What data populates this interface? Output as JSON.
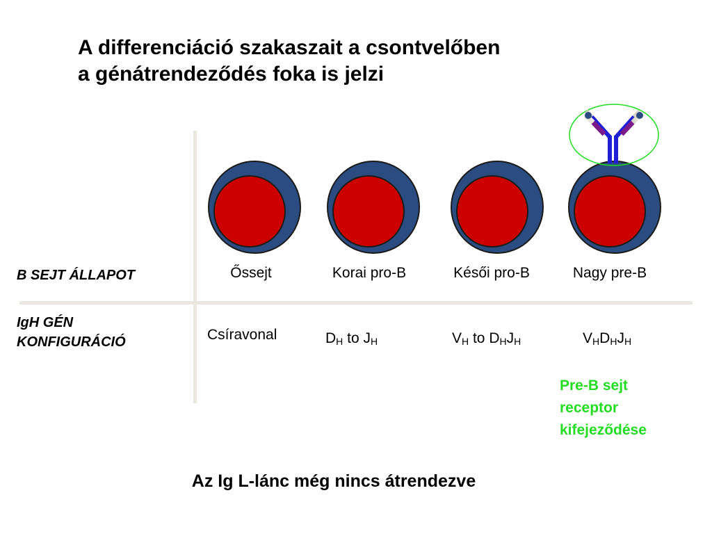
{
  "title": {
    "line1": "A differenciáció szakaszait a csontvelőben",
    "line2": "a génátrendeződés foka is jelzi"
  },
  "rows": {
    "state_label": "B SEJT ÁLLAPOT",
    "gene_label_line1": "IgH GÉN",
    "gene_label_line2": "KONFIGURÁCIÓ"
  },
  "stages": [
    {
      "name": "Őssejt"
    },
    {
      "name": "Korai pro-B"
    },
    {
      "name": "Késői pro-B"
    },
    {
      "name": "Nagy pre-B"
    }
  ],
  "gene_configs": {
    "germline": "Csíravonal",
    "dj": {
      "d": "D",
      "h1": "H",
      "to": " to ",
      "j": "J",
      "h2": "H"
    },
    "vdj_step": {
      "v": "V",
      "h1": "H",
      "to": " to ",
      "d": "D",
      "h2": "H",
      "j": "J",
      "h3": "H"
    },
    "vdj": {
      "v": "V",
      "h1": "H",
      "d": "D",
      "h2": "H",
      "j": "J",
      "h3": "H"
    }
  },
  "receptor_note": {
    "line1": "Pre-B sejt",
    "line2": "receptor",
    "line3": "kifejeződése"
  },
  "footer": "Az Ig L-lánc még nincs átrendezve",
  "colors": {
    "cell_outer": "#2b4c80",
    "nucleus": "#cc0000",
    "heavy_chain": "#1f1fd6",
    "light_chain": "#7b1a8a",
    "receptor_highlight": "#22dd22",
    "divider": "#ebe6e0"
  },
  "icons": [
    "cell-icon",
    "pre-b-receptor-icon"
  ]
}
